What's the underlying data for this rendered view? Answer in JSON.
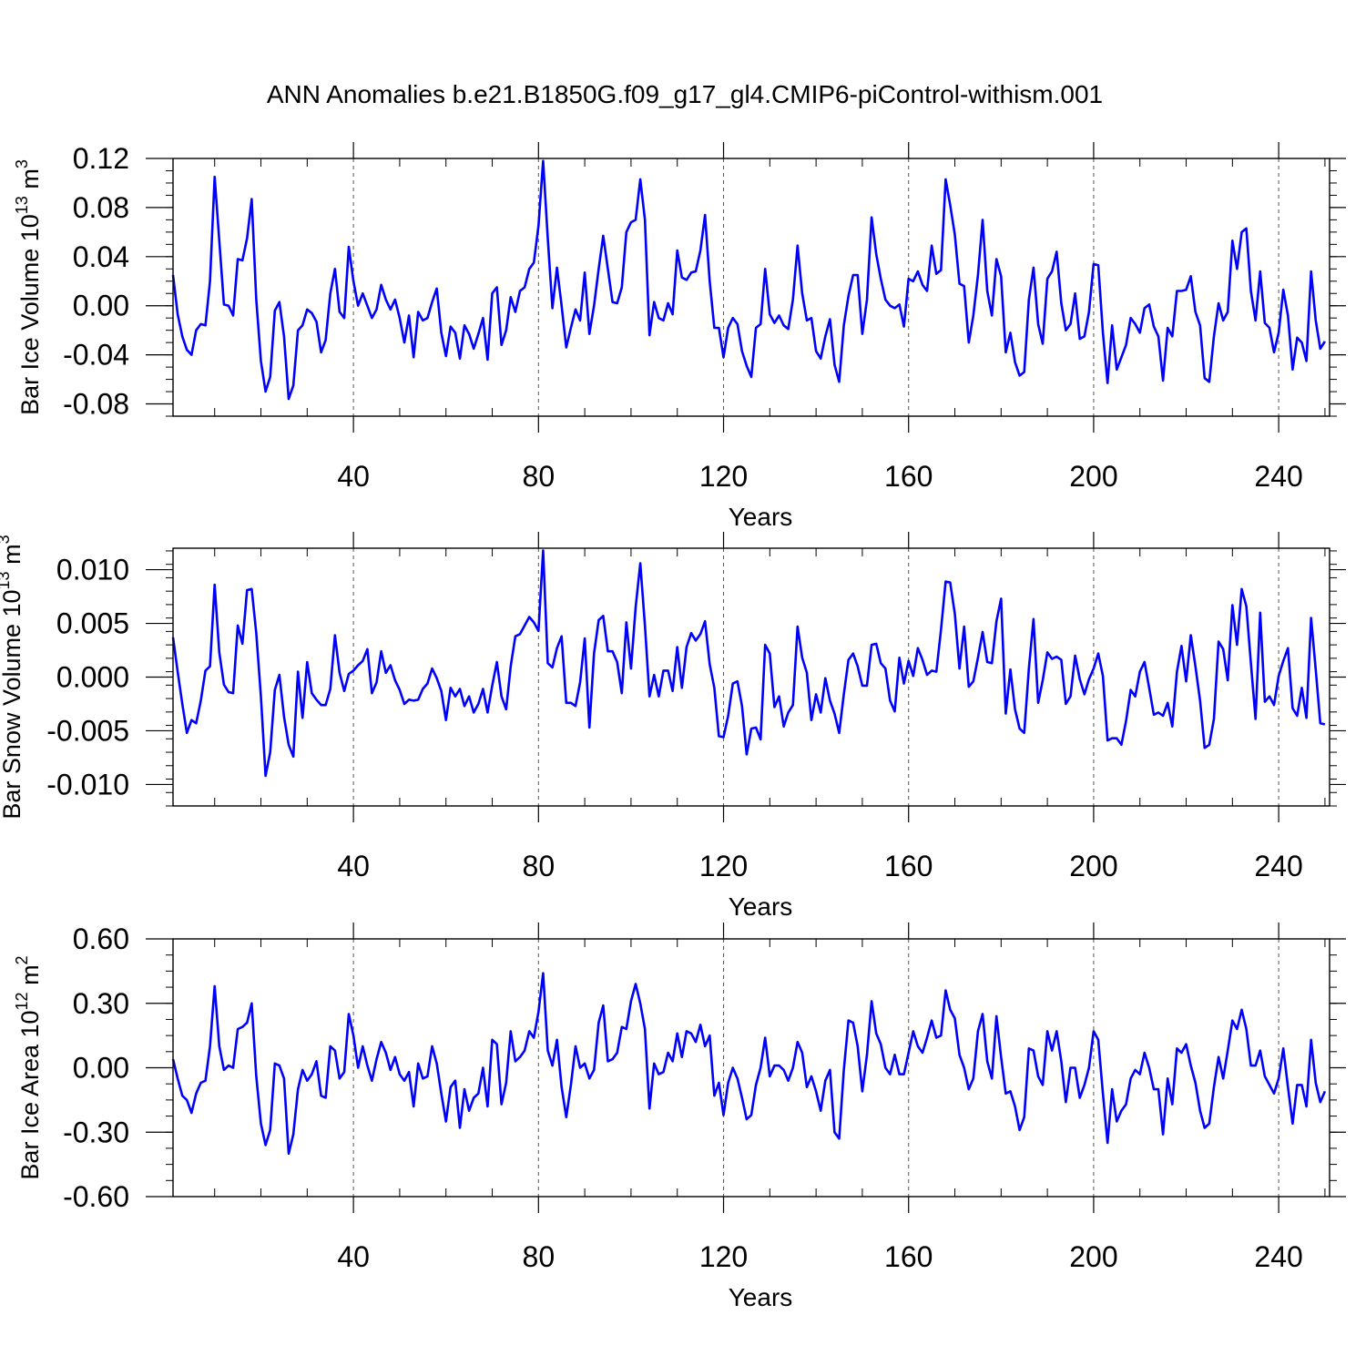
{
  "title": "ANN Anomalies b.e21.B1850G.f09_g17_gl4.CMIP6-piControl-withism.001",
  "chart_data": [
    {
      "type": "line",
      "ylabel_main": "Bar Ice Volume 10",
      "ylabel_exp": "13",
      "ylabel_unit": " m",
      "ylabel_unit_exp": "3",
      "xlabel": "Years",
      "xlim": [
        1,
        251
      ],
      "ylim": [
        -0.09,
        0.12
      ],
      "yticks": [
        0.12,
        0.08,
        0.04,
        0.0,
        -0.04,
        -0.08
      ],
      "ytick_labels": [
        "0.12",
        "0.08",
        "0.04",
        "0.00",
        "-0.04",
        "-0.08"
      ],
      "xticks": [
        40,
        80,
        120,
        160,
        200,
        240
      ],
      "xtick_labels": [
        "40",
        "80",
        "120",
        "160",
        "200",
        "240"
      ],
      "line_color": "#0000ff",
      "gridlines_x": [
        40,
        80,
        120,
        160,
        200,
        240
      ],
      "x_start": 1,
      "values": [
        0.025,
        -0.007,
        -0.025,
        -0.036,
        -0.04,
        -0.02,
        -0.015,
        -0.016,
        0.02,
        0.105,
        0.053,
        0.001,
        0.0,
        -0.008,
        0.038,
        0.037,
        0.055,
        0.087,
        0.005,
        -0.045,
        -0.07,
        -0.058,
        -0.004,
        0.003,
        -0.025,
        -0.076,
        -0.065,
        -0.02,
        -0.016,
        -0.003,
        -0.006,
        -0.013,
        -0.038,
        -0.028,
        0.01,
        0.03,
        -0.005,
        -0.01,
        0.048,
        0.02,
        0.0,
        0.01,
        0.0,
        -0.01,
        -0.003,
        0.017,
        0.005,
        -0.003,
        0.005,
        -0.01,
        -0.03,
        -0.008,
        -0.042,
        -0.005,
        -0.012,
        -0.01,
        0.003,
        0.014,
        -0.022,
        -0.041,
        -0.017,
        -0.022,
        -0.043,
        -0.016,
        -0.023,
        -0.035,
        -0.023,
        -0.01,
        -0.044,
        0.01,
        0.015,
        -0.032,
        -0.02,
        0.007,
        -0.005,
        0.012,
        0.015,
        0.03,
        0.035,
        0.065,
        0.118,
        0.055,
        -0.002,
        0.031,
        0.0,
        -0.034,
        -0.018,
        -0.003,
        -0.012,
        0.027,
        -0.023,
        0.0,
        0.03,
        0.057,
        0.03,
        0.003,
        0.002,
        0.015,
        0.06,
        0.068,
        0.07,
        0.103,
        0.07,
        -0.024,
        0.003,
        -0.01,
        -0.012,
        0.002,
        -0.007,
        0.045,
        0.023,
        0.021,
        0.027,
        0.028,
        0.045,
        0.074,
        0.02,
        -0.018,
        -0.018,
        -0.042,
        -0.018,
        -0.01,
        -0.015,
        -0.037,
        -0.049,
        -0.058,
        -0.018,
        -0.015,
        0.03,
        -0.007,
        -0.014,
        -0.008,
        -0.016,
        -0.019,
        0.005,
        0.049,
        0.01,
        -0.012,
        -0.01,
        -0.037,
        -0.043,
        -0.025,
        -0.011,
        -0.048,
        -0.062,
        -0.016,
        0.008,
        0.025,
        0.025,
        -0.023,
        0.005,
        0.072,
        0.042,
        0.022,
        0.005,
        0.0,
        -0.002,
        0.001,
        -0.017,
        0.022,
        0.02,
        0.028,
        0.017,
        0.012,
        0.049,
        0.026,
        0.029,
        0.103,
        0.082,
        0.058,
        0.018,
        0.016,
        -0.03,
        -0.008,
        0.025,
        0.07,
        0.012,
        -0.008,
        0.038,
        0.024,
        -0.038,
        -0.022,
        -0.046,
        -0.057,
        -0.054,
        0.005,
        0.031,
        -0.015,
        -0.031,
        0.022,
        0.028,
        0.044,
        0.002,
        -0.02,
        -0.015,
        0.01,
        -0.027,
        -0.025,
        -0.005,
        0.034,
        0.033,
        -0.022,
        -0.063,
        -0.016,
        -0.052,
        -0.042,
        -0.032,
        -0.01,
        -0.015,
        -0.022,
        -0.002,
        0.001,
        -0.017,
        -0.025,
        -0.061,
        -0.018,
        -0.025,
        0.012,
        0.012,
        0.013,
        0.024,
        -0.005,
        -0.016,
        -0.059,
        -0.062,
        -0.025,
        0.002,
        -0.012,
        -0.005,
        0.053,
        0.03,
        0.06,
        0.063,
        0.012,
        -0.012,
        0.028,
        -0.014,
        -0.018,
        -0.038,
        -0.022,
        0.013,
        -0.008,
        -0.052,
        -0.026,
        -0.03,
        -0.045,
        0.028,
        -0.012,
        -0.035,
        -0.029
      ]
    },
    {
      "type": "line",
      "ylabel_main": "Bar Snow Volume 10",
      "ylabel_exp": "13",
      "ylabel_unit": " m",
      "ylabel_unit_exp": "3",
      "xlabel": "Years",
      "xlim": [
        1,
        251
      ],
      "ylim": [
        -0.012,
        0.012
      ],
      "yticks": [
        0.01,
        0.005,
        0.0,
        -0.005,
        -0.01
      ],
      "ytick_labels": [
        "0.010",
        "0.005",
        "0.000",
        "-0.005",
        "-0.010"
      ],
      "xticks": [
        40,
        80,
        120,
        160,
        200,
        240
      ],
      "xtick_labels": [
        "40",
        "80",
        "120",
        "160",
        "200",
        "240"
      ],
      "line_color": "#0000ff",
      "gridlines_x": [
        40,
        80,
        120,
        160,
        200,
        240
      ],
      "x_start": 1,
      "values": [
        0.0037,
        0.0005,
        -0.0025,
        -0.0052,
        -0.004,
        -0.0043,
        -0.0022,
        0.0006,
        0.001,
        0.0086,
        0.0023,
        -0.0007,
        -0.0014,
        -0.0015,
        0.0048,
        0.0031,
        0.0081,
        0.0082,
        0.0041,
        -0.0018,
        -0.0092,
        -0.007,
        -0.0012,
        0.0002,
        -0.0037,
        -0.0063,
        -0.0074,
        0.0005,
        -0.0038,
        0.0014,
        -0.0015,
        -0.0021,
        -0.0026,
        -0.0026,
        -0.0011,
        0.0039,
        0.0004,
        -0.0013,
        0.0003,
        0.0006,
        0.0011,
        0.0015,
        0.0026,
        -0.0015,
        -0.0005,
        0.0024,
        0.0004,
        0.0011,
        -0.0003,
        -0.0012,
        -0.0025,
        -0.0021,
        -0.0022,
        -0.0021,
        -0.0011,
        -0.0006,
        0.0008,
        -0.0001,
        -0.0013,
        -0.004,
        -0.001,
        -0.0018,
        -0.0011,
        -0.0027,
        -0.0018,
        -0.0033,
        -0.0025,
        -0.0011,
        -0.0033,
        -0.0008,
        0.0014,
        -0.0018,
        -0.003,
        0.001,
        0.0038,
        0.004,
        0.0048,
        0.0056,
        0.0051,
        0.0043,
        0.0118,
        0.0013,
        0.0009,
        0.0027,
        0.0038,
        -0.0024,
        -0.0024,
        -0.0027,
        -0.0005,
        0.0036,
        -0.0047,
        0.0022,
        0.0053,
        0.0057,
        0.0024,
        0.0024,
        0.0014,
        -0.0015,
        0.0051,
        0.0008,
        0.0065,
        0.0106,
        0.0048,
        -0.0018,
        0.0002,
        -0.0018,
        0.0006,
        0.0006,
        -0.0013,
        0.0028,
        -0.001,
        0.0028,
        0.0041,
        0.0034,
        0.004,
        0.0052,
        0.0012,
        -0.001,
        -0.0055,
        -0.0056,
        -0.0036,
        -0.0006,
        -0.0004,
        -0.0027,
        -0.0072,
        -0.0048,
        -0.0047,
        -0.0058,
        0.003,
        0.0022,
        -0.0028,
        -0.0018,
        -0.0046,
        -0.0033,
        -0.0026,
        0.0047,
        0.0018,
        0.0004,
        -0.004,
        -0.0016,
        -0.0033,
        -0.0001,
        -0.0022,
        -0.0034,
        -0.0052,
        -0.0016,
        0.0016,
        0.0022,
        0.001,
        -0.0008,
        -0.0008,
        0.003,
        0.0031,
        0.0013,
        0.0008,
        -0.0022,
        -0.0032,
        0.0018,
        -0.0006,
        0.0015,
        0.0001,
        0.0027,
        0.0016,
        0.0002,
        0.0006,
        0.0005,
        0.0044,
        0.0089,
        0.0088,
        0.0059,
        0.0008,
        0.0047,
        -0.0009,
        -0.0004,
        0.0018,
        0.0042,
        0.0014,
        0.0013,
        0.0052,
        0.0073,
        -0.0034,
        0.0007,
        -0.003,
        -0.0048,
        -0.0052,
        0.0008,
        0.0054,
        -0.0024,
        -0.0003,
        0.0023,
        0.0017,
        0.0019,
        0.0016,
        -0.0025,
        -0.0018,
        0.002,
        -0.0002,
        -0.0016,
        -0.0002,
        0.0008,
        0.0022,
        0.0001,
        -0.0059,
        -0.0057,
        -0.0057,
        -0.0063,
        -0.0041,
        -0.0012,
        -0.0018,
        0.0005,
        0.0014,
        -0.001,
        -0.0035,
        -0.0033,
        -0.0036,
        -0.0024,
        -0.0046,
        0.0005,
        0.0029,
        -0.0004,
        0.0039,
        0.001,
        -0.0022,
        -0.0066,
        -0.0063,
        -0.0039,
        0.0033,
        0.0026,
        -0.0003,
        0.0067,
        0.003,
        0.0082,
        0.0066,
        0.0013,
        -0.0039,
        0.006,
        -0.0023,
        -0.0018,
        -0.0026,
        0.0001,
        0.0015,
        0.0027,
        -0.0029,
        -0.0036,
        -0.001,
        -0.0038,
        0.0055,
        0.0007,
        -0.0043,
        -0.0044
      ]
    },
    {
      "type": "line",
      "ylabel_main": "Bar Ice Area 10",
      "ylabel_exp": "12",
      "ylabel_unit": " m",
      "ylabel_unit_exp": "2",
      "xlabel": "Years",
      "xlim": [
        1,
        251
      ],
      "ylim": [
        -0.6,
        0.6
      ],
      "yticks": [
        0.6,
        0.3,
        0.0,
        -0.3,
        -0.6
      ],
      "ytick_labels": [
        "0.60",
        "0.30",
        "0.00",
        "-0.30",
        "-0.60"
      ],
      "xticks": [
        40,
        80,
        120,
        160,
        200,
        240
      ],
      "xtick_labels": [
        "40",
        "80",
        "120",
        "160",
        "200",
        "240"
      ],
      "line_color": "#0000ff",
      "gridlines_x": [
        40,
        80,
        120,
        160,
        200,
        240
      ],
      "x_start": 1,
      "values": [
        0.04,
        -0.05,
        -0.13,
        -0.15,
        -0.21,
        -0.12,
        -0.07,
        -0.06,
        0.1,
        0.38,
        0.1,
        -0.01,
        0.01,
        0.0,
        0.18,
        0.19,
        0.21,
        0.3,
        -0.04,
        -0.26,
        -0.36,
        -0.29,
        0.02,
        0.01,
        -0.05,
        -0.4,
        -0.31,
        -0.1,
        -0.01,
        -0.06,
        -0.03,
        0.03,
        -0.13,
        -0.14,
        0.1,
        0.08,
        -0.05,
        -0.02,
        0.25,
        0.15,
        0.0,
        0.1,
        0.01,
        -0.06,
        0.04,
        0.12,
        0.07,
        -0.01,
        0.05,
        -0.03,
        -0.06,
        -0.02,
        -0.18,
        0.02,
        -0.05,
        -0.04,
        0.1,
        0.02,
        -0.12,
        -0.25,
        -0.09,
        -0.06,
        -0.28,
        -0.1,
        -0.2,
        -0.14,
        -0.12,
        0.0,
        -0.18,
        0.13,
        0.11,
        -0.17,
        -0.07,
        0.17,
        0.03,
        0.05,
        0.08,
        0.17,
        0.14,
        0.26,
        0.44,
        0.08,
        0.01,
        0.13,
        -0.09,
        -0.23,
        -0.08,
        0.1,
        0.0,
        0.02,
        -0.05,
        -0.01,
        0.21,
        0.29,
        0.03,
        0.04,
        0.07,
        0.19,
        0.18,
        0.31,
        0.39,
        0.3,
        0.18,
        -0.19,
        0.02,
        -0.03,
        -0.02,
        0.07,
        0.03,
        0.16,
        0.05,
        0.17,
        0.16,
        0.12,
        0.2,
        0.1,
        0.15,
        -0.13,
        -0.07,
        -0.22,
        -0.07,
        0.0,
        -0.05,
        -0.14,
        -0.24,
        -0.22,
        -0.08,
        0.0,
        0.14,
        -0.04,
        0.01,
        0.01,
        -0.01,
        -0.06,
        0.0,
        0.12,
        0.07,
        -0.09,
        -0.04,
        -0.11,
        -0.2,
        -0.06,
        -0.01,
        -0.3,
        -0.33,
        -0.01,
        0.22,
        0.21,
        0.1,
        -0.11,
        0.06,
        0.31,
        0.16,
        0.11,
        0.0,
        -0.03,
        0.06,
        -0.03,
        -0.03,
        0.07,
        0.17,
        0.1,
        0.07,
        0.14,
        0.22,
        0.14,
        0.15,
        0.36,
        0.27,
        0.23,
        0.06,
        0.0,
        -0.1,
        -0.05,
        0.17,
        0.25,
        0.03,
        -0.05,
        0.24,
        0.05,
        -0.12,
        -0.11,
        -0.18,
        -0.29,
        -0.23,
        0.09,
        0.08,
        -0.04,
        -0.08,
        0.17,
        0.08,
        0.17,
        0.03,
        -0.16,
        0.0,
        0.0,
        -0.14,
        -0.08,
        0.0,
        0.17,
        0.13,
        -0.12,
        -0.35,
        -0.1,
        -0.25,
        -0.2,
        -0.17,
        -0.05,
        -0.01,
        -0.03,
        0.07,
        0.0,
        -0.1,
        -0.1,
        -0.31,
        -0.05,
        -0.17,
        0.09,
        0.07,
        0.11,
        0.01,
        -0.07,
        -0.2,
        -0.28,
        -0.26,
        -0.09,
        0.05,
        -0.05,
        0.08,
        0.22,
        0.18,
        0.27,
        0.18,
        0.01,
        0.01,
        0.08,
        -0.04,
        -0.08,
        -0.12,
        -0.05,
        0.09,
        -0.09,
        -0.26,
        -0.08,
        -0.08,
        -0.18,
        0.13,
        -0.07,
        -0.16,
        -0.11
      ]
    }
  ]
}
